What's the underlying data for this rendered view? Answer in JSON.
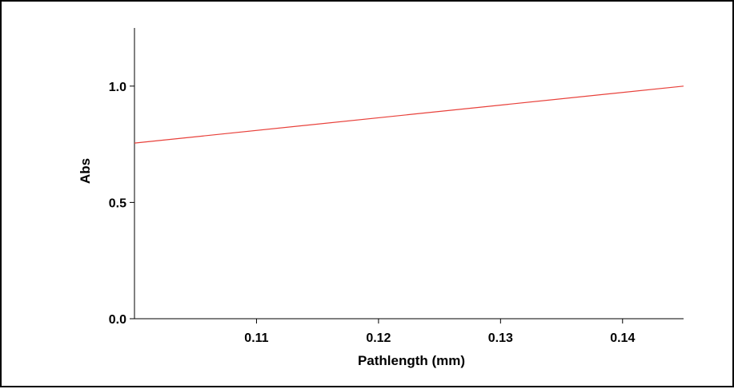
{
  "chart_data": {
    "type": "line",
    "title": "",
    "xlabel": "Pathlength (mm)",
    "ylabel": "Abs",
    "xlim": [
      0.1,
      0.145
    ],
    "ylim": [
      0.0,
      1.25
    ],
    "x_ticks": [
      {
        "value": 0.11,
        "label": "0.11"
      },
      {
        "value": 0.12,
        "label": "0.12"
      },
      {
        "value": 0.13,
        "label": "0.13"
      },
      {
        "value": 0.14,
        "label": "0.14"
      }
    ],
    "y_ticks": [
      {
        "value": 0.0,
        "label": "0.0"
      },
      {
        "value": 0.5,
        "label": "0.5"
      },
      {
        "value": 1.0,
        "label": "1.0"
      }
    ],
    "grid": false,
    "series": [
      {
        "color": "#e8403a",
        "x": [
          0.1,
          0.145
        ],
        "y": [
          0.755,
          1.0
        ]
      }
    ]
  }
}
